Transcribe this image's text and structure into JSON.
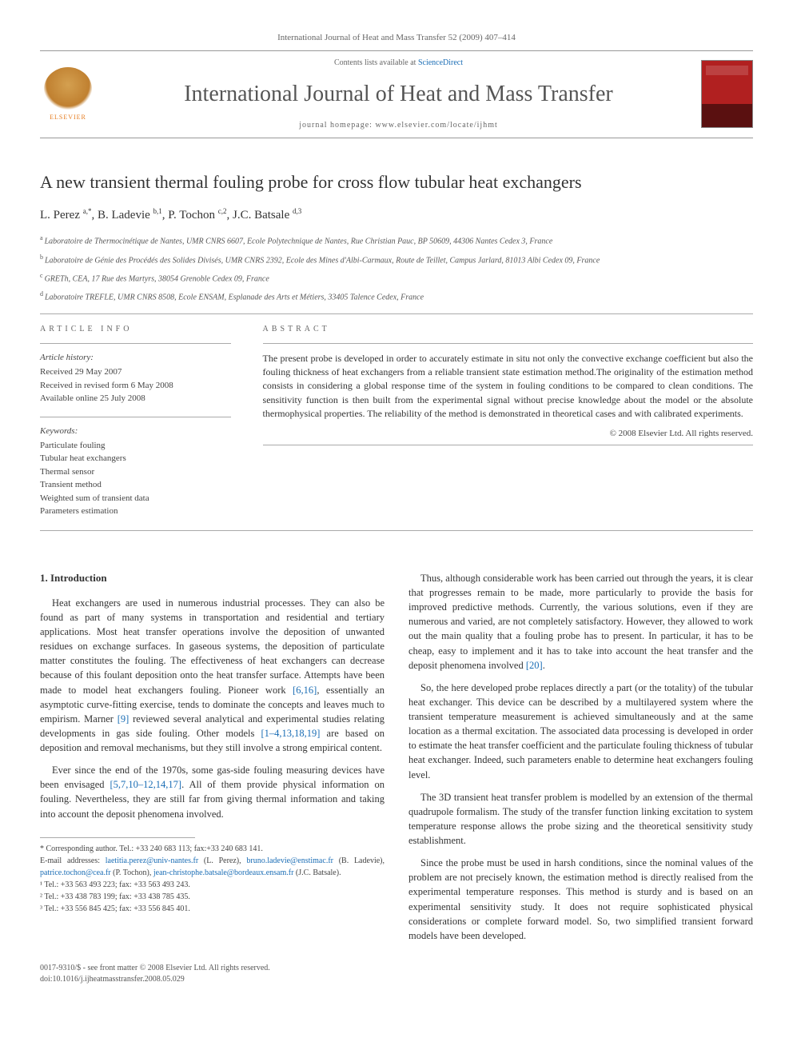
{
  "header": {
    "citation": "International Journal of Heat and Mass Transfer 52 (2009) 407–414",
    "contents_prefix": "Contents lists available at ",
    "contents_link": "ScienceDirect",
    "journal_name": "International Journal of Heat and Mass Transfer",
    "homepage_prefix": "journal homepage: ",
    "homepage_url": "www.elsevier.com/locate/ijhmt",
    "publisher": "ELSEVIER"
  },
  "article": {
    "title": "A new transient thermal fouling probe for cross flow tubular heat exchangers",
    "authors_html": "L. Perez <sup>a,*</sup>, B. Ladevie <sup>b,1</sup>, P. Tochon <sup>c,2</sup>, J.C. Batsale <sup>d,3</sup>",
    "affiliations": [
      {
        "sup": "a",
        "text": "Laboratoire de Thermocinétique de Nantes, UMR CNRS 6607, Ecole Polytechnique de Nantes, Rue Christian Pauc, BP 50609, 44306 Nantes Cedex 3, France"
      },
      {
        "sup": "b",
        "text": "Laboratoire de Génie des Procédés des Solides Divisés, UMR CNRS 2392, Ecole des Mines d'Albi-Carmaux, Route de Teillet, Campus Jarlard, 81013 Albi Cedex 09, France"
      },
      {
        "sup": "c",
        "text": "GRETh, CEA, 17 Rue des Martyrs, 38054 Grenoble Cedex 09, France"
      },
      {
        "sup": "d",
        "text": "Laboratoire TREFLE, UMR CNRS 8508, Ecole ENSAM, Esplanade des Arts et Métiers, 33405 Talence Cedex, France"
      }
    ]
  },
  "info": {
    "article_info_heading": "ARTICLE INFO",
    "abstract_heading": "ABSTRACT",
    "history_label": "Article history:",
    "history": [
      "Received 29 May 2007",
      "Received in revised form 6 May 2008",
      "Available online 25 July 2008"
    ],
    "keywords_label": "Keywords:",
    "keywords": [
      "Particulate fouling",
      "Tubular heat exchangers",
      "Thermal sensor",
      "Transient method",
      "Weighted sum of transient data",
      "Parameters estimation"
    ],
    "abstract": "The present probe is developed in order to accurately estimate in situ not only the convective exchange coefficient but also the fouling thickness of heat exchangers from a reliable transient state estimation method.The originality of the estimation method consists in considering a global response time of the system in fouling conditions to be compared to clean conditions. The sensitivity function is then built from the experimental signal without precise knowledge about the model or the absolute thermophysical properties. The reliability of the method is demonstrated in theoretical cases and with calibrated experiments.",
    "copyright": "© 2008 Elsevier Ltd. All rights reserved."
  },
  "body": {
    "section_heading": "1. Introduction",
    "p1": "Heat exchangers are used in numerous industrial processes. They can also be found as part of many systems in transportation and residential and tertiary applications. Most heat transfer operations involve the deposition of unwanted residues on exchange surfaces. In gaseous systems, the deposition of particulate matter constitutes the fouling. The effectiveness of heat exchangers can decrease because of this foulant deposition onto the heat transfer surface. Attempts have been made to model heat exchangers fouling. Pioneer work ",
    "ref1": "[6,16]",
    "p1b": ", essentially an asymptotic curve-fitting exercise, tends to dominate the concepts and leaves much to empirism. Marner ",
    "ref2": "[9]",
    "p1c": " reviewed several analytical and experimental studies relating developments in gas side fouling. Other models ",
    "ref3": "[1–4,13,18,19]",
    "p1d": " are based on deposition and removal mechanisms, but they still involve a strong empirical content.",
    "p2a": "Ever since the end of the 1970s, some gas-side fouling measuring devices have been envisaged ",
    "ref4": "[5,7,10–12,14,17]",
    "p2b": ". All of them provide physical information on fouling. Nevertheless, they are still far from giving thermal information and taking into account the deposit phenomena involved.",
    "p3": "Thus, although considerable work has been carried out through the years, it is clear that progresses remain to be made, more particularly to provide the basis for improved predictive methods. Currently, the various solutions, even if they are numerous and varied, are not completely satisfactory. However, they allowed to work out the main quality that a fouling probe has to present. In particular, it has to be cheap, easy to implement and it has to take into account the heat transfer and the deposit phenomena involved ",
    "ref5": "[20]",
    "p3b": ".",
    "p4": "So, the here developed probe replaces directly a part (or the totality) of the tubular heat exchanger. This device can be described by a multilayered system where the transient temperature measurement is achieved simultaneously and at the same location as a thermal excitation. The associated data processing is developed in order to estimate the heat transfer coefficient and the particulate fouling thickness of tubular heat exchanger. Indeed, such parameters enable to determine heat exchangers fouling level.",
    "p5": "The 3D transient heat transfer problem is modelled by an extension of the thermal quadrupole formalism. The study of the transfer function linking excitation to system temperature response allows the probe sizing and the theoretical sensitivity study establishment.",
    "p6": "Since the probe must be used in harsh conditions, since the nominal values of the problem are not precisely known, the estimation method is directly realised from the experimental temperature responses. This method is sturdy and is based on an experimental sensitivity study. It does not require sophisticated physical considerations or complete forward model. So, two simplified transient forward models have been developed."
  },
  "footnotes": {
    "corr": "* Corresponding author. Tel.: +33 240 683 113; fax:+33 240 683 141.",
    "email_label": "E-mail addresses: ",
    "emails": [
      {
        "addr": "laetitia.perez@univ-nantes.fr",
        "who": " (L. Perez), "
      },
      {
        "addr": "bruno.ladevie@enstimac.fr",
        "who": " (B. Ladevie), "
      },
      {
        "addr": "patrice.tochon@cea.fr",
        "who": " (P. Tochon), "
      },
      {
        "addr": "jean-christophe.batsale@bordeaux.ensam.fr",
        "who": " (J.C. Batsale)."
      }
    ],
    "tels": [
      "¹ Tel.: +33 563 493 223; fax: +33 563 493 243.",
      "² Tel.: +33 438 783 199; fax: +33 438 785 435.",
      "³ Tel.: +33 556 845 425; fax: +33 556 845 401."
    ]
  },
  "footer": {
    "left1": "0017-9310/$ - see front matter © 2008 Elsevier Ltd. All rights reserved.",
    "left2": "doi:10.1016/j.ijheatmasstransfer.2008.05.029"
  },
  "colors": {
    "link": "#1a6db5",
    "text": "#333333",
    "muted": "#666666",
    "rule": "#999999",
    "elsevier_orange": "#e67c1f",
    "cover_red": "#b12020"
  }
}
